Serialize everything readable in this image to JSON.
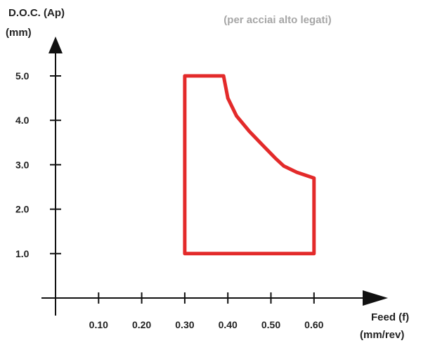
{
  "chart_data": {
    "type": "area",
    "title": "",
    "subtitle": "(per acciai alto legati)",
    "ylabel_line1": "D.O.C. (Ap)",
    "ylabel_line2": "(mm)",
    "xlabel_line1": "Feed (f)",
    "xlabel_line2": "(mm/rev)",
    "x_ticks": [
      {
        "value": 0.1,
        "label": "0.10"
      },
      {
        "value": 0.2,
        "label": "0.20"
      },
      {
        "value": 0.3,
        "label": "0.30"
      },
      {
        "value": 0.4,
        "label": "0.40"
      },
      {
        "value": 0.5,
        "label": "0.50"
      },
      {
        "value": 0.6,
        "label": "0.60"
      }
    ],
    "y_ticks": [
      {
        "value": 1.0,
        "label": "1.0"
      },
      {
        "value": 2.0,
        "label": "2.0"
      },
      {
        "value": 3.0,
        "label": "3.0"
      },
      {
        "value": 4.0,
        "label": "4.0"
      },
      {
        "value": 5.0,
        "label": "5.0"
      }
    ],
    "xlim": [
      0.0,
      0.72
    ],
    "ylim": [
      0.0,
      5.9
    ],
    "grid": false,
    "region": {
      "color": "#e32a2a",
      "points": [
        [
          0.3,
          1.0
        ],
        [
          0.3,
          5.0
        ],
        [
          0.39,
          5.0
        ],
        [
          0.4,
          4.5
        ],
        [
          0.42,
          4.1
        ],
        [
          0.45,
          3.75
        ],
        [
          0.48,
          3.45
        ],
        [
          0.51,
          3.15
        ],
        [
          0.53,
          2.97
        ],
        [
          0.56,
          2.83
        ],
        [
          0.6,
          2.7
        ],
        [
          0.6,
          1.0
        ],
        [
          0.3,
          1.0
        ]
      ]
    },
    "subtitle_color": "#a6a6a6",
    "axis_color": "#111111"
  }
}
